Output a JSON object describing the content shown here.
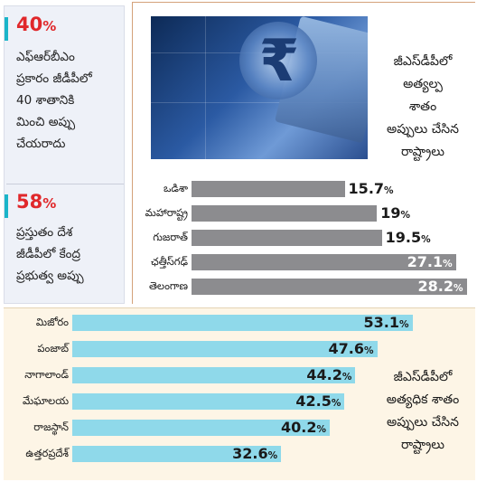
{
  "left_stats": [
    {
      "value": "40",
      "percent_sign": "%",
      "text_lines": [
        "ఎఫ్ఆర్‌బీఎం",
        "ప్రకారం జీడీపీలో",
        "40 శాతానికి",
        "మించి అప్పు",
        "చేయరాదు"
      ]
    },
    {
      "value": "58",
      "percent_sign": "%",
      "text_lines": [
        "ప్రస్తుతం దేశ",
        "జీడీపీలో కేంద్ర",
        "ప్రభుత్వ అప్పు"
      ]
    }
  ],
  "top_caption_lines": [
    "జీఎస్‌డీపీలో",
    "అత్యల్ప",
    "శాతం",
    "అప్పులు చేసిన",
    "రాష్ట్రాలు"
  ],
  "bottom_caption_lines": [
    "జీఎస్‌డీపీలో",
    "అత్యధిక శాతం",
    "అప్పులు చేసిన",
    "రాష్ట్రాలు"
  ],
  "colors": {
    "accent_red": "#e0282b",
    "accent_teal": "#1bb5c9",
    "low_bar": "#8c8c8f",
    "high_bar": "#8fd9ea",
    "bottom_bg": "#fdf5e6",
    "left_bg": "#eef1f8"
  },
  "photo": {
    "icon": "rupee-icon",
    "symbol": "₹"
  },
  "chart_data": [
    {
      "type": "bar",
      "orientation": "horizontal",
      "unit": "%",
      "categories": [
        "ఒడిశా",
        "మహారాష్ట్ర",
        "గుజరాత్",
        "ఛత్తీస్‌గఢ్",
        "తెలంగాణ"
      ],
      "values": [
        15.7,
        19,
        19.5,
        27.1,
        28.2
      ],
      "value_labels": [
        "15.7",
        "19",
        "19.5",
        "27.1",
        "28.2"
      ],
      "xlim": [
        0,
        30
      ]
    },
    {
      "type": "bar",
      "orientation": "horizontal",
      "unit": "%",
      "categories": [
        "మిజోరం",
        "పంజాబ్",
        "నాగాలాండ్",
        "మేఘాలయ",
        "రాజస్థాన్",
        "ఉత్తరప్రదేశ్"
      ],
      "values": [
        53.1,
        47.6,
        44.2,
        42.5,
        40.2,
        32.6
      ],
      "value_labels": [
        "53.1",
        "47.6",
        "44.2",
        "42.5",
        "40.2",
        "32.6"
      ],
      "xlim": [
        0,
        55
      ]
    }
  ]
}
